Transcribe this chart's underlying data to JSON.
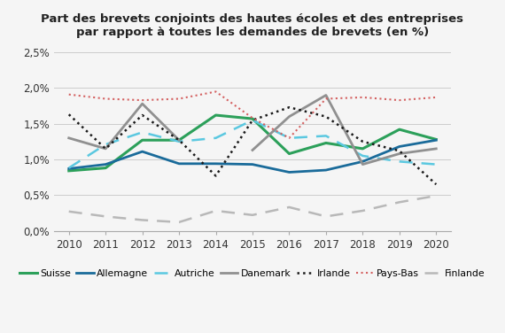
{
  "title_line1": "Part des brevets conjoints des hautes écoles et des entreprises",
  "title_line2": "par rapport à toutes les demandes de brevets (en %)",
  "years": [
    2010,
    2011,
    2012,
    2013,
    2014,
    2015,
    2016,
    2017,
    2018,
    2019,
    2020
  ],
  "series": {
    "Suisse": [
      0.84,
      0.88,
      1.27,
      1.27,
      1.62,
      1.57,
      1.08,
      1.23,
      1.15,
      1.42,
      1.28
    ],
    "Allemagne": [
      0.87,
      0.93,
      1.11,
      0.94,
      0.94,
      0.93,
      0.82,
      0.85,
      0.97,
      1.18,
      1.27
    ],
    "Autriche": [
      0.88,
      1.21,
      1.38,
      1.25,
      1.3,
      1.55,
      1.3,
      1.33,
      1.05,
      0.97,
      0.93
    ],
    "Danemark": [
      1.3,
      1.15,
      1.78,
      1.27,
      null,
      1.13,
      1.6,
      1.9,
      0.93,
      1.08,
      1.15
    ],
    "Irlande": [
      1.63,
      1.15,
      1.62,
      1.27,
      0.77,
      1.55,
      1.73,
      1.6,
      1.25,
      1.12,
      0.65
    ],
    "Pays-Bas": [
      1.91,
      1.85,
      1.83,
      1.85,
      1.95,
      1.58,
      1.3,
      1.85,
      1.87,
      1.83,
      1.87
    ],
    "Finlande": [
      0.27,
      0.2,
      0.15,
      0.12,
      0.28,
      0.22,
      0.33,
      0.2,
      0.28,
      0.4,
      0.49
    ]
  },
  "colors": {
    "Suisse": "#2ca05a",
    "Allemagne": "#1a6b9a",
    "Autriche": "#5bc8e0",
    "Danemark": "#909090",
    "Irlande": "#1a1a1a",
    "Pays-Bas": "#d46060",
    "Finlande": "#b8b8b8"
  },
  "linestyles": {
    "Suisse": "solid",
    "Allemagne": "solid",
    "Autriche": "dashed",
    "Danemark": "solid",
    "Irlande": "dotted",
    "Pays-Bas": "dotted",
    "Finlande": "dashed"
  },
  "linewidths": {
    "Suisse": 2.2,
    "Allemagne": 2.0,
    "Autriche": 1.8,
    "Danemark": 2.0,
    "Irlande": 1.8,
    "Pays-Bas": 1.5,
    "Finlande": 1.8
  },
  "use_marker": {
    "Suisse": false,
    "Allemagne": false,
    "Autriche": false,
    "Danemark": false,
    "Irlande": false,
    "Pays-Bas": false,
    "Finlande": false
  },
  "ylim": [
    0.0,
    2.6
  ],
  "yticks": [
    0.0,
    0.5,
    1.0,
    1.5,
    2.0,
    2.5
  ],
  "ytick_labels": [
    "0,0%",
    "0,5%",
    "1,0%",
    "1,5%",
    "2,0%",
    "2,5%"
  ],
  "background_color": "#f5f5f5",
  "plot_bg_color": "#f5f5f5",
  "grid_color": "#cccccc"
}
